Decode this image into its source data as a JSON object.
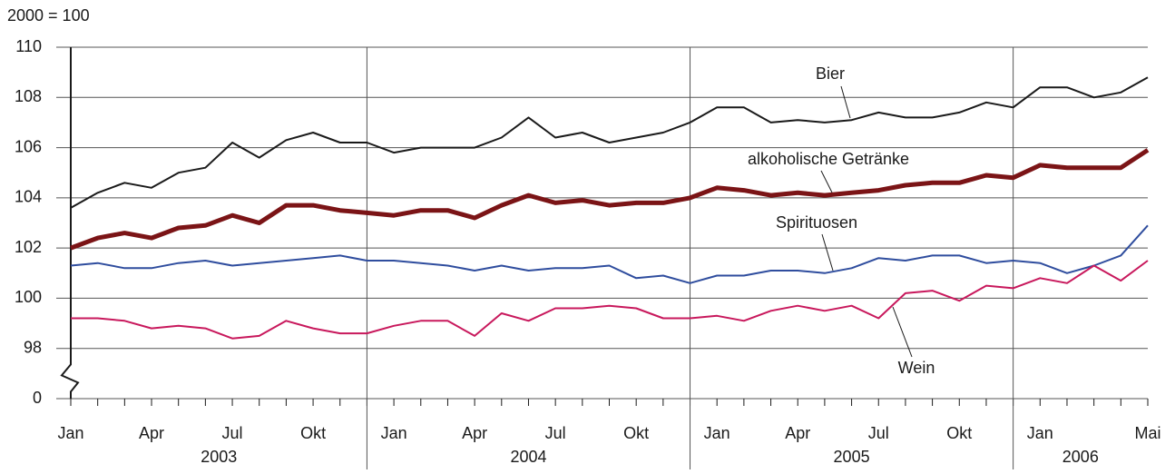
{
  "chart_data": {
    "type": "line",
    "y_unit": "2000 = 100",
    "categories": [
      "Jan",
      null,
      null,
      "Apr",
      null,
      null,
      "Jul",
      null,
      null,
      "Okt",
      null,
      null,
      "Jan",
      null,
      null,
      "Apr",
      null,
      null,
      "Jul",
      null,
      null,
      "Okt",
      null,
      null,
      "Jan",
      null,
      null,
      "Apr",
      null,
      null,
      "Jul",
      null,
      null,
      "Okt",
      null,
      null,
      "Jan",
      null,
      null,
      null,
      "Mai"
    ],
    "years": [
      "2003",
      "2004",
      "2005",
      "2006"
    ],
    "ylim": [
      0,
      110
    ],
    "axis_break": [
      0,
      98
    ],
    "yticks": [
      0,
      98,
      100,
      102,
      104,
      106,
      108,
      110
    ],
    "grid": true,
    "series": [
      {
        "name": "Bier",
        "color": "#1a1a1a",
        "line_width": 2,
        "values": [
          103.6,
          104.2,
          104.6,
          104.4,
          105.0,
          105.2,
          106.2,
          105.6,
          106.3,
          106.6,
          106.2,
          106.2,
          105.8,
          106.0,
          106.0,
          106.0,
          106.4,
          107.2,
          106.4,
          106.6,
          106.2,
          106.4,
          106.6,
          107.0,
          107.6,
          107.6,
          107.0,
          107.1,
          107.0,
          107.1,
          107.4,
          107.2,
          107.2,
          107.4,
          107.8,
          107.6,
          108.4,
          108.4,
          108.0,
          108.2,
          108.8
        ]
      },
      {
        "name": "alkoholische Getränke",
        "color": "#7b1416",
        "line_width": 5,
        "values": [
          102.0,
          102.4,
          102.6,
          102.4,
          102.8,
          102.9,
          103.3,
          103.0,
          103.7,
          103.7,
          103.5,
          103.4,
          103.3,
          103.5,
          103.5,
          103.2,
          103.7,
          104.1,
          103.8,
          103.9,
          103.7,
          103.8,
          103.8,
          104.0,
          104.4,
          104.3,
          104.1,
          104.2,
          104.1,
          104.2,
          104.3,
          104.5,
          104.6,
          104.6,
          104.9,
          104.8,
          105.3,
          105.2,
          105.2,
          105.2,
          105.9
        ]
      },
      {
        "name": "Spirituosen",
        "color": "#2f4d9e",
        "line_width": 2,
        "values": [
          101.3,
          101.4,
          101.2,
          101.2,
          101.4,
          101.5,
          101.3,
          101.4,
          101.5,
          101.6,
          101.7,
          101.5,
          101.5,
          101.4,
          101.3,
          101.1,
          101.3,
          101.1,
          101.2,
          101.2,
          101.3,
          100.8,
          100.9,
          100.6,
          100.9,
          100.9,
          101.1,
          101.1,
          101.0,
          101.2,
          101.6,
          101.5,
          101.7,
          101.7,
          101.4,
          101.5,
          101.4,
          101.0,
          101.3,
          101.7,
          102.9
        ]
      },
      {
        "name": "Wein",
        "color": "#c8185c",
        "line_width": 2,
        "values": [
          99.2,
          99.2,
          99.1,
          98.8,
          98.9,
          98.8,
          98.4,
          98.5,
          99.1,
          98.8,
          98.6,
          98.6,
          98.9,
          99.1,
          99.1,
          98.5,
          99.4,
          99.1,
          99.6,
          99.6,
          99.7,
          99.6,
          99.2,
          99.2,
          99.3,
          99.1,
          99.5,
          99.7,
          99.5,
          99.7,
          99.2,
          100.2,
          100.3,
          99.9,
          100.5,
          100.4,
          100.8,
          100.6,
          101.3,
          100.7,
          101.5
        ]
      }
    ]
  }
}
